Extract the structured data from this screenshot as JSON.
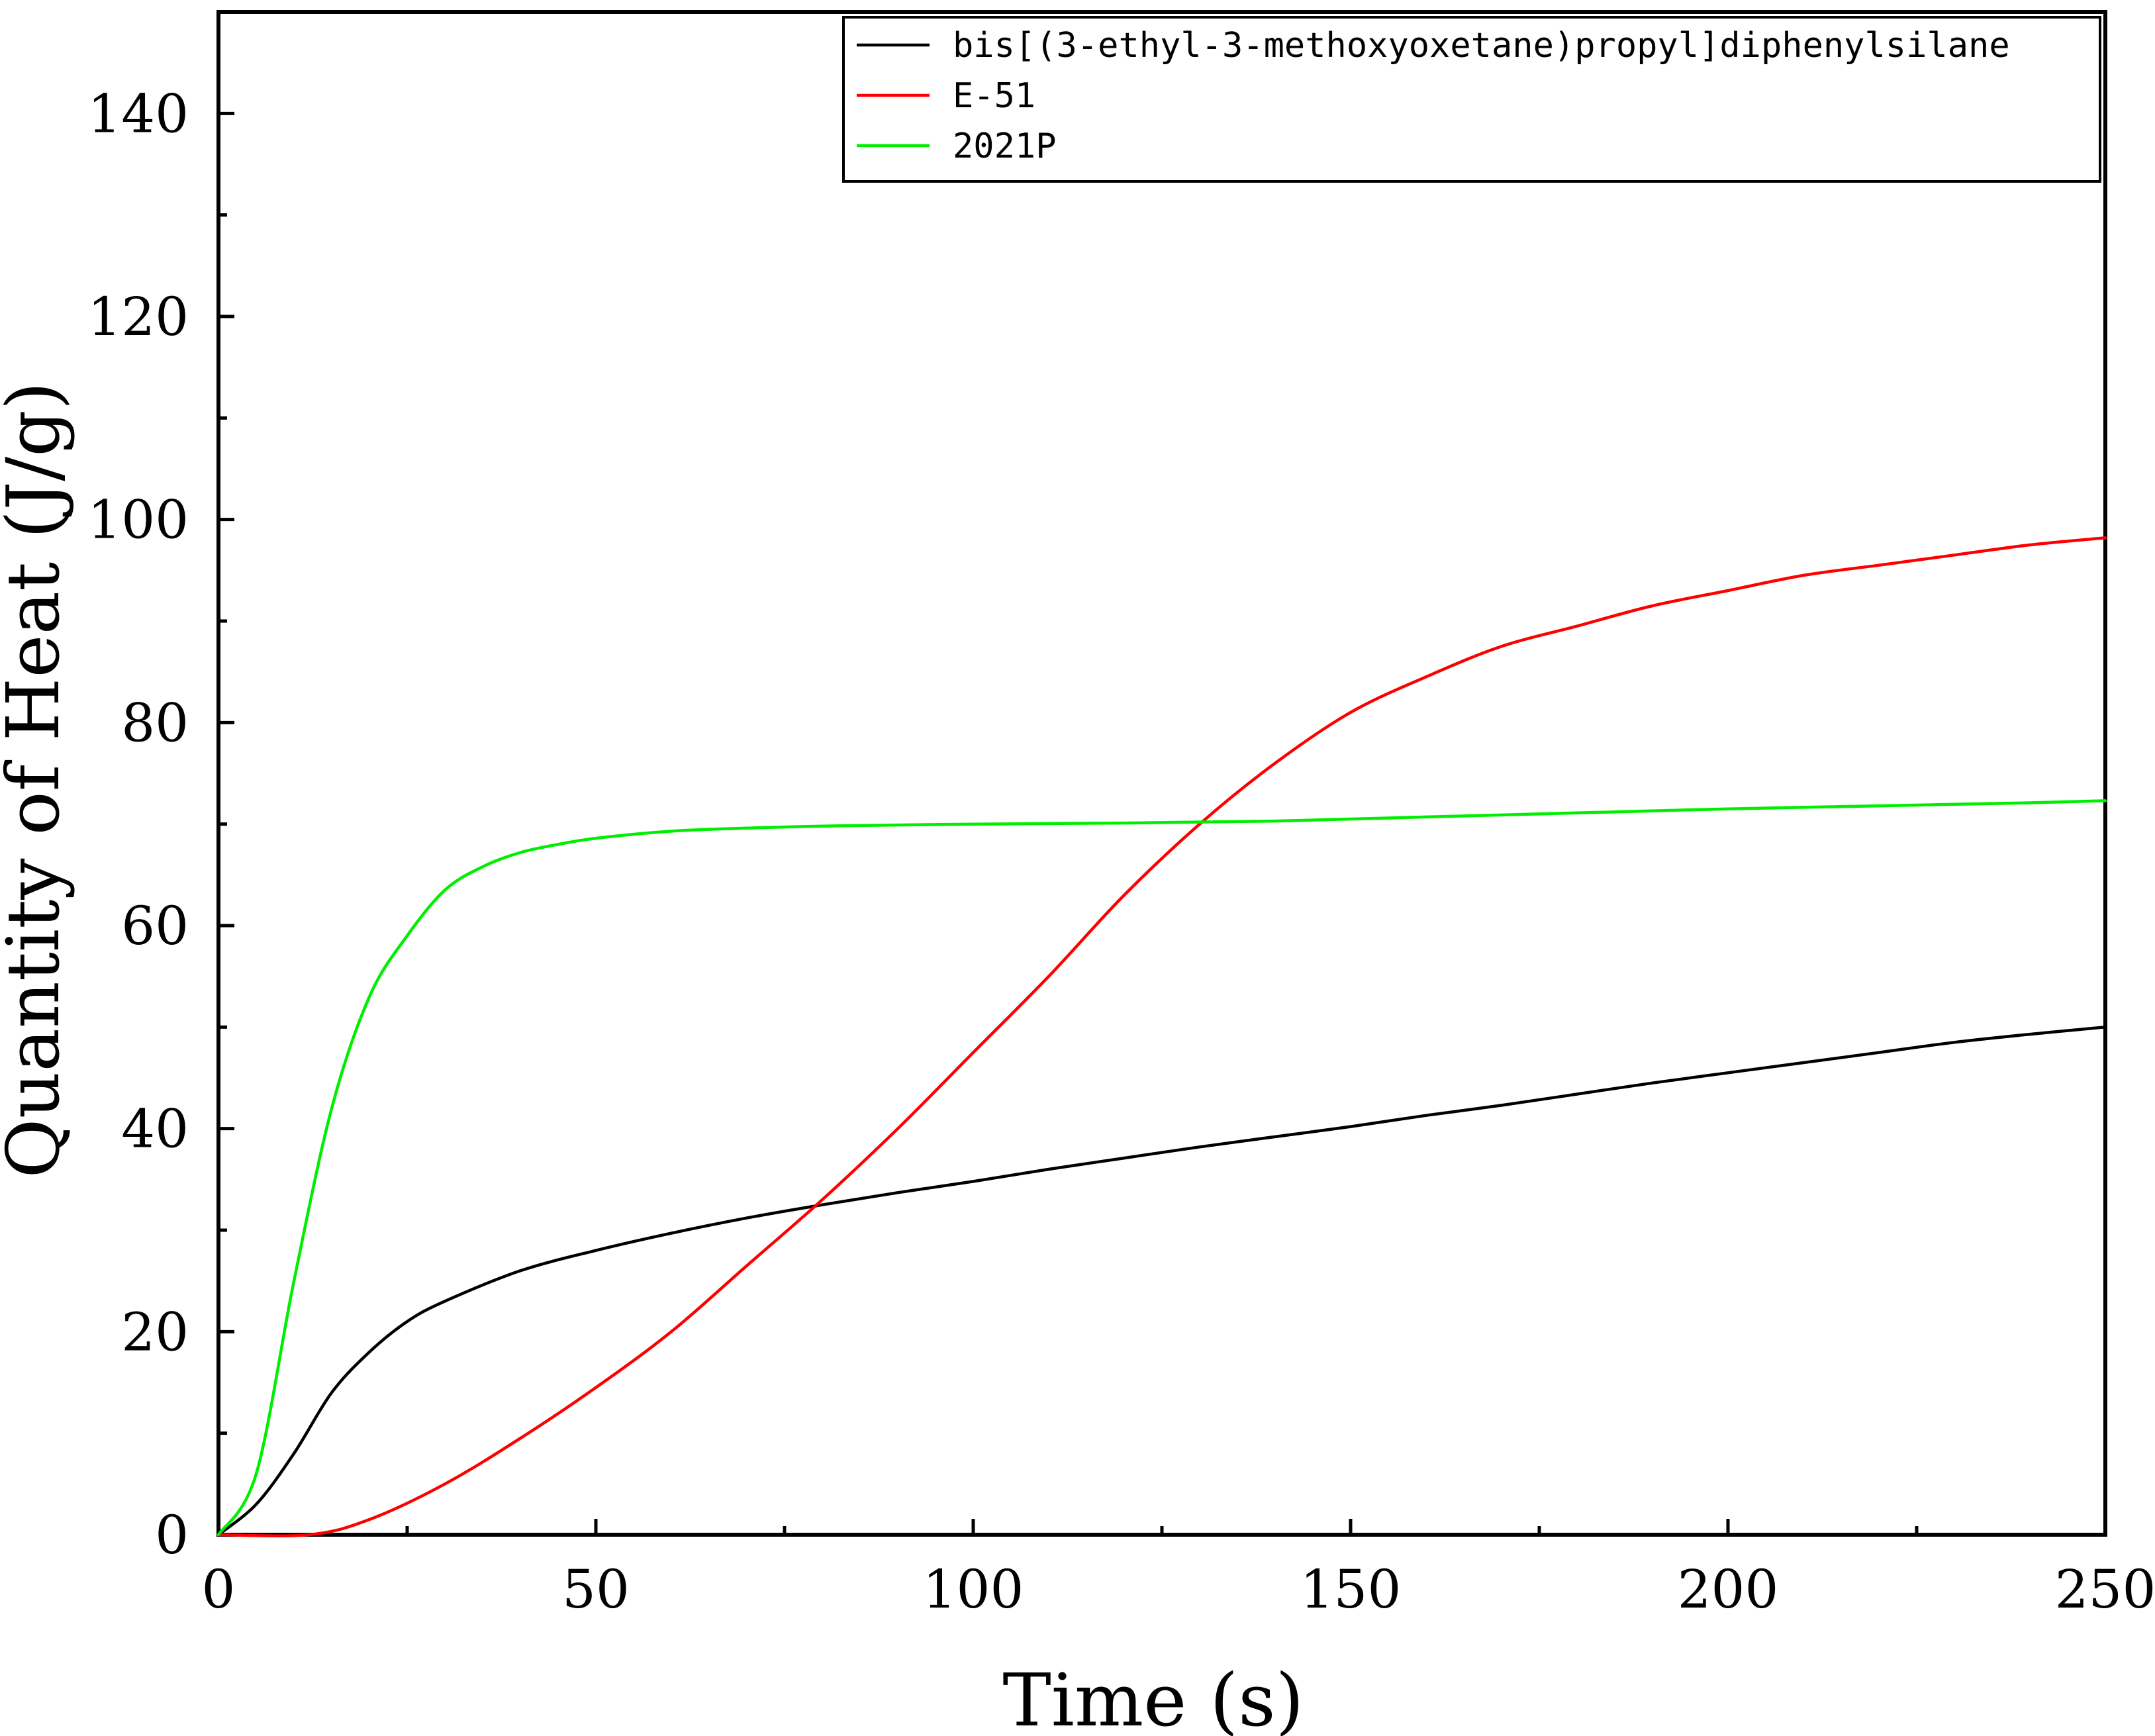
{
  "chart_data": {
    "type": "line",
    "xlabel": "Time (s)",
    "ylabel": "Quantity of Heat (J/g)",
    "xlim": [
      0,
      250
    ],
    "ylim": [
      0,
      150
    ],
    "x_ticks": [
      0,
      50,
      100,
      150,
      200,
      250
    ],
    "y_ticks": [
      0,
      20,
      40,
      60,
      80,
      100,
      120,
      140
    ],
    "x_minor_step": 25,
    "y_minor_step": 10,
    "grid": false,
    "legend_position": "top-right",
    "series": [
      {
        "name": "bis[(3-ethyl-3-methoxyoxetane)propyl]diphenylsilane",
        "color": "#000000",
        "x": [
          0,
          5,
          10,
          15,
          20,
          25,
          30,
          40,
          50,
          60,
          70,
          80,
          90,
          100,
          110,
          120,
          130,
          140,
          150,
          160,
          170,
          180,
          190,
          200,
          210,
          220,
          230,
          240,
          250
        ],
        "y": [
          0,
          3,
          8,
          14,
          18,
          21,
          23,
          26,
          28,
          29.7,
          31.2,
          32.5,
          33.7,
          34.8,
          36,
          37.1,
          38.2,
          39.2,
          40.2,
          41.3,
          42.3,
          43.4,
          44.5,
          45.5,
          46.5,
          47.5,
          48.5,
          49.3,
          50
        ]
      },
      {
        "name": "E-51",
        "color": "#ff0000",
        "x": [
          0,
          12,
          20,
          30,
          40,
          50,
          60,
          70,
          80,
          90,
          100,
          110,
          120,
          130,
          140,
          150,
          160,
          170,
          180,
          190,
          200,
          210,
          220,
          230,
          240,
          250
        ],
        "y": [
          0,
          0,
          1.5,
          5,
          9.5,
          14.5,
          20,
          26.5,
          33,
          40,
          47.5,
          55,
          63,
          70,
          76,
          81,
          84.5,
          87.5,
          89.5,
          91.5,
          93,
          94.5,
          95.5,
          96.5,
          97.5,
          98.2
        ]
      },
      {
        "name": "2021P",
        "color": "#00ee00",
        "x": [
          0,
          5,
          10,
          15,
          20,
          25,
          30,
          35,
          40,
          45,
          50,
          60,
          70,
          80,
          100,
          120,
          140,
          160,
          180,
          200,
          220,
          240,
          250
        ],
        "y": [
          0,
          6,
          25,
          42,
          53,
          59,
          63.5,
          65.8,
          67.2,
          68,
          68.6,
          69.3,
          69.6,
          69.8,
          70,
          70.1,
          70.3,
          70.7,
          71.1,
          71.5,
          71.8,
          72.1,
          72.3
        ]
      }
    ]
  }
}
